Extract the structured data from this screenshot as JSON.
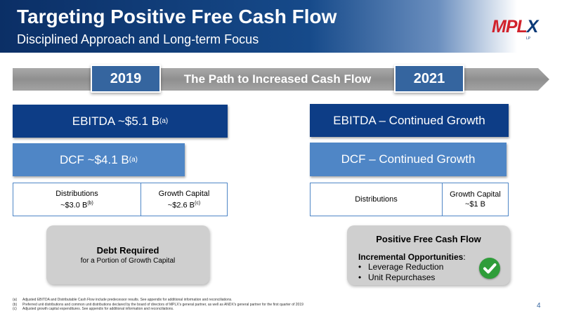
{
  "header": {
    "title": "Targeting Positive Free Cash Flow",
    "subtitle": "Disciplined Approach and Long-term Focus",
    "logo_main": "MPL",
    "logo_x": "X",
    "logo_tm": "LP"
  },
  "path": {
    "label": "The Path to Increased Cash Flow",
    "year_start": "2019",
    "year_end": "2021"
  },
  "left": {
    "ebitda": "EBITDA ~$5.1 B",
    "ebitda_note": "(a)",
    "dcf": "DCF ~$4.1 B",
    "dcf_note": "(a)",
    "distributions_label": "Distributions",
    "distributions_value": "~$3.0 B",
    "distributions_note": "(b)",
    "growth_label": "Growth Capital",
    "growth_value": "~$2.6 B",
    "growth_note": "(c)",
    "debt_title": "Debt Required",
    "debt_sub": "for a Portion of Growth Capital"
  },
  "right": {
    "ebitda": "EBITDA – Continued Growth",
    "dcf": "DCF – Continued Growth",
    "distributions_label": "Distributions",
    "growth_label": "Growth Capital",
    "growth_value": "~$1 B",
    "fcf_title": "Positive Free Cash Flow",
    "opps_label": "Incremental Opportunities",
    "opps_colon": ":",
    "opps": [
      "Leverage Reduction",
      "Unit Repurchases"
    ],
    "check_icon": "check-circle-icon"
  },
  "footnotes": [
    {
      "key": "(a)",
      "text": "Adjusted EBITDA and Distributable Cash Flow include predecessor results. See appendix for additional information and reconciliations."
    },
    {
      "key": "(b)",
      "text": "Preferred unit distributions and common unit distributions declared by the board of directors of MPLX's general partner, as well as ANDX's general partner for the first quarter of 2019"
    },
    {
      "key": "(c)",
      "text": "Adjusted growth capital expenditures. See appendix for additional information and reconciliations."
    }
  ],
  "page_number": "4",
  "colors": {
    "header_navy": "#0b2f66",
    "year_blue": "#35659f",
    "dark_bar": "#0d3d86",
    "light_bar": "#4f86c6",
    "grey_box": "#cfcfcf",
    "logo_red": "#d1222c",
    "check_green": "#2f9d3a"
  }
}
